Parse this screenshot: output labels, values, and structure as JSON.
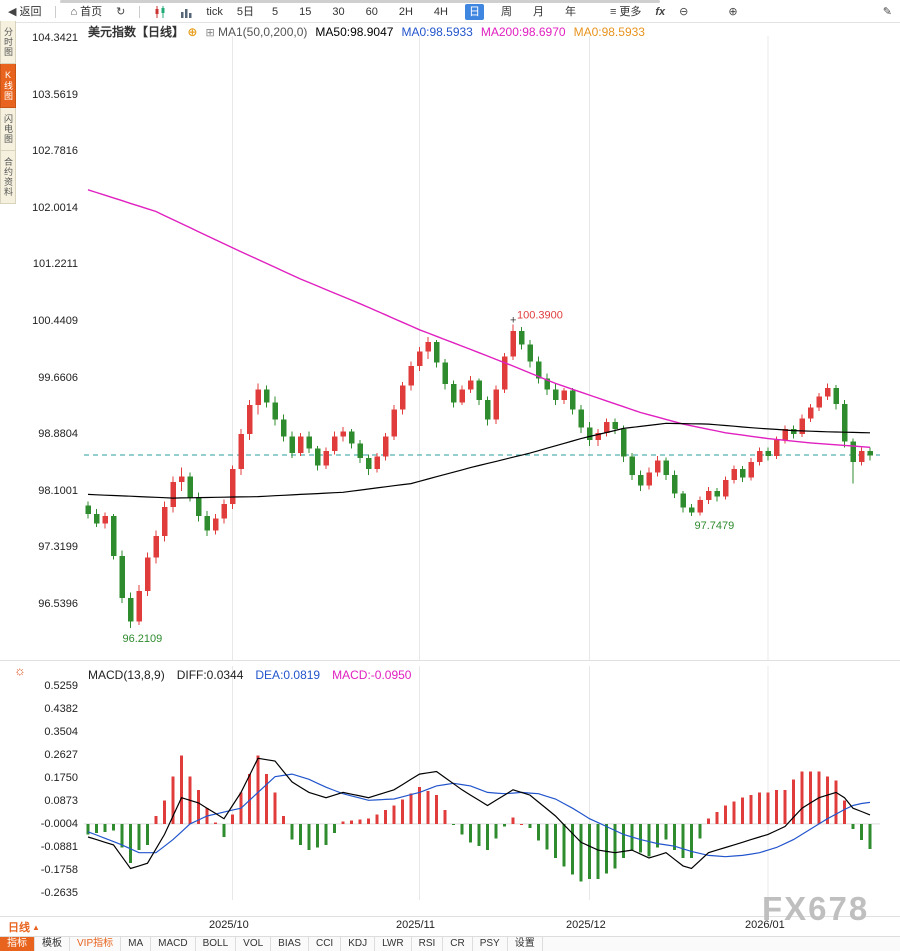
{
  "toolbar": {
    "back_label": "返回",
    "home_label": "首页",
    "tick_label": "tick",
    "five_day_label": "5日",
    "timeframes": [
      {
        "label": "5"
      },
      {
        "label": "15"
      },
      {
        "label": "30"
      },
      {
        "label": "60"
      },
      {
        "label": "2H"
      },
      {
        "label": "4H"
      },
      {
        "label": "日",
        "cls": "active"
      },
      {
        "label": "周"
      },
      {
        "label": "月"
      },
      {
        "label": "年"
      }
    ],
    "more_label": "更多",
    "fx_label": "fx"
  },
  "icons": {
    "back": "◀",
    "home": "⌂",
    "refresh": "↻",
    "menu": "≡",
    "zoom_out": "⊖",
    "zoom_in": "⊕",
    "pencil": "✎",
    "add_circle": "⊕",
    "settings_box": "⊞",
    "indicator_sun": "☼",
    "dropdown_up": "▲"
  },
  "sidebar": {
    "tabs": [
      {
        "label": "分时图"
      },
      {
        "label": "K线图",
        "cls": "active"
      },
      {
        "label": "闪电图"
      },
      {
        "label": "合约资料"
      }
    ]
  },
  "chart_header": {
    "symbol": "美元指数",
    "period": "【日线】",
    "ma_group": "MA1(50,0,200,0)",
    "ma50": "MA50:98.9047",
    "ma0_blue": "MA0:98.5933",
    "ma200": "MA200:98.6970",
    "ma0_orange": "MA0:98.5933"
  },
  "macd_header": {
    "title": "MACD(13,8,9)",
    "diff": "DIFF:0.0344",
    "dea": "DEA:0.0819",
    "macd": "MACD:-0.0950"
  },
  "price_axis": [
    "104.3421",
    "103.5619",
    "102.7816",
    "102.0014",
    "101.2211",
    "100.4409",
    "99.6606",
    "98.8804",
    "98.1001",
    "97.3199",
    "96.5396"
  ],
  "macd_axis": [
    "0.5259",
    "0.4382",
    "0.3504",
    "0.2627",
    "0.1750",
    "0.0873",
    "-0.0004",
    "-0.0881",
    "-0.1758",
    "-0.2635"
  ],
  "x_axis": [
    {
      "label": "2025/10",
      "cls": "m1"
    },
    {
      "label": "2025/11",
      "cls": "m2"
    },
    {
      "label": "2025/12",
      "cls": "m3"
    },
    {
      "label": "2026/01",
      "cls": "m4"
    }
  ],
  "bottom": {
    "period_selector": "日线",
    "tabs": [
      {
        "label": "指标",
        "cls": "active"
      },
      {
        "label": "模板"
      },
      {
        "label": "VIP指标",
        "cls": "vip"
      },
      {
        "label": "MA"
      },
      {
        "label": "MACD"
      },
      {
        "label": "BOLL"
      },
      {
        "label": "VOL"
      },
      {
        "label": "BIAS"
      },
      {
        "label": "CCI"
      },
      {
        "label": "KDJ"
      },
      {
        "label": "LWR"
      },
      {
        "label": "RSI"
      },
      {
        "label": "CR"
      },
      {
        "label": "PSY"
      },
      {
        "label": "设置"
      }
    ]
  },
  "watermark": "FX678",
  "colors": {
    "up": "#e03c3c",
    "down": "#2e8b2e",
    "ma50": "#000000",
    "ma200": "#e020c0",
    "diff_line": "#000000",
    "dea_line": "#2255cc",
    "last_close_line": "#2a9d9d",
    "grid": "#e8e8e8",
    "accent": "#e8641e",
    "timeframe_active": "#3f86e0",
    "annotation_up": "#e03c3c",
    "annotation_down": "#2e8b2e"
  },
  "chart_data": {
    "type": "candlestick",
    "symbol": "美元指数",
    "period": "日线",
    "indicator": "MACD(13,8,9)",
    "price_ticks": [
      104.3421,
      103.5619,
      102.7816,
      102.0014,
      101.2211,
      100.4409,
      99.6606,
      98.8804,
      98.1001,
      97.3199,
      96.5396
    ],
    "macd_ticks": [
      0.5259,
      0.4382,
      0.3504,
      0.2627,
      0.175,
      0.0873,
      -0.0004,
      -0.0881,
      -0.1758,
      -0.2635
    ],
    "x_tick_labels": [
      "2025/10",
      "2025/11",
      "2025/12",
      "2026/01"
    ],
    "x_tick_indices": [
      17,
      39,
      59,
      80
    ],
    "last_close": 98.5933,
    "high_annotation": {
      "index": 50,
      "value": 100.39,
      "label": "100.3900"
    },
    "low_annotation": {
      "index": 5,
      "value": 96.21,
      "label": "96.2109"
    },
    "low2_annotation": {
      "index": 71,
      "value": 97.75,
      "label": "97.7479"
    },
    "candles": [
      [
        97.9,
        97.95,
        97.72,
        97.78
      ],
      [
        97.78,
        97.85,
        97.6,
        97.65
      ],
      [
        97.65,
        97.8,
        97.58,
        97.75
      ],
      [
        97.75,
        97.78,
        97.15,
        97.2
      ],
      [
        97.2,
        97.28,
        96.55,
        96.62
      ],
      [
        96.62,
        96.7,
        96.21,
        96.3
      ],
      [
        96.3,
        96.8,
        96.25,
        96.72
      ],
      [
        96.72,
        97.25,
        96.65,
        97.18
      ],
      [
        97.18,
        97.55,
        97.1,
        97.48
      ],
      [
        97.48,
        97.95,
        97.4,
        97.88
      ],
      [
        97.88,
        98.3,
        97.8,
        98.22
      ],
      [
        98.22,
        98.42,
        98.1,
        98.3
      ],
      [
        98.3,
        98.35,
        97.95,
        98.0
      ],
      [
        98.0,
        98.08,
        97.68,
        97.75
      ],
      [
        97.75,
        97.82,
        97.48,
        97.55
      ],
      [
        97.55,
        97.78,
        97.5,
        97.72
      ],
      [
        97.72,
        97.98,
        97.65,
        97.92
      ],
      [
        97.92,
        98.45,
        97.85,
        98.4
      ],
      [
        98.4,
        98.95,
        98.32,
        98.88
      ],
      [
        98.88,
        99.35,
        98.8,
        99.28
      ],
      [
        99.28,
        99.58,
        99.15,
        99.5
      ],
      [
        99.5,
        99.55,
        99.25,
        99.32
      ],
      [
        99.32,
        99.4,
        99.0,
        99.08
      ],
      [
        99.08,
        99.15,
        98.78,
        98.85
      ],
      [
        98.85,
        98.92,
        98.55,
        98.62
      ],
      [
        98.62,
        98.9,
        98.58,
        98.85
      ],
      [
        98.85,
        98.92,
        98.62,
        98.68
      ],
      [
        98.68,
        98.72,
        98.38,
        98.45
      ],
      [
        98.45,
        98.7,
        98.4,
        98.65
      ],
      [
        98.65,
        98.92,
        98.6,
        98.85
      ],
      [
        98.85,
        98.98,
        98.78,
        98.92
      ],
      [
        98.92,
        98.95,
        98.68,
        98.75
      ],
      [
        98.75,
        98.8,
        98.48,
        98.55
      ],
      [
        98.55,
        98.6,
        98.32,
        98.4
      ],
      [
        98.4,
        98.62,
        98.35,
        98.57
      ],
      [
        98.57,
        98.9,
        98.52,
        98.85
      ],
      [
        98.85,
        99.28,
        98.8,
        99.22
      ],
      [
        99.22,
        99.6,
        99.15,
        99.55
      ],
      [
        99.55,
        99.88,
        99.48,
        99.82
      ],
      [
        99.82,
        100.08,
        99.75,
        100.02
      ],
      [
        100.02,
        100.22,
        99.92,
        100.15
      ],
      [
        100.15,
        100.18,
        99.8,
        99.87
      ],
      [
        99.87,
        99.92,
        99.5,
        99.57
      ],
      [
        99.57,
        99.62,
        99.25,
        99.32
      ],
      [
        99.32,
        99.55,
        99.28,
        99.5
      ],
      [
        99.5,
        99.68,
        99.45,
        99.62
      ],
      [
        99.62,
        99.65,
        99.28,
        99.35
      ],
      [
        99.35,
        99.4,
        99.0,
        99.08
      ],
      [
        99.08,
        99.55,
        99.02,
        99.5
      ],
      [
        99.5,
        100.0,
        99.45,
        99.95
      ],
      [
        99.95,
        100.39,
        99.9,
        100.3
      ],
      [
        100.3,
        100.36,
        100.05,
        100.12
      ],
      [
        100.12,
        100.18,
        99.8,
        99.88
      ],
      [
        99.88,
        99.95,
        99.58,
        99.65
      ],
      [
        99.65,
        99.72,
        99.42,
        99.5
      ],
      [
        99.5,
        99.58,
        99.28,
        99.35
      ],
      [
        99.35,
        99.52,
        99.3,
        99.48
      ],
      [
        99.48,
        99.52,
        99.15,
        99.22
      ],
      [
        99.22,
        99.28,
        98.9,
        98.97
      ],
      [
        98.97,
        99.05,
        98.72,
        98.8
      ],
      [
        98.8,
        98.95,
        98.72,
        98.9
      ],
      [
        98.9,
        99.1,
        98.85,
        99.05
      ],
      [
        99.05,
        99.1,
        98.88,
        98.95
      ],
      [
        98.95,
        99.0,
        98.5,
        98.57
      ],
      [
        98.57,
        98.62,
        98.25,
        98.32
      ],
      [
        98.32,
        98.38,
        98.1,
        98.17
      ],
      [
        98.17,
        98.42,
        98.12,
        98.35
      ],
      [
        98.35,
        98.58,
        98.3,
        98.52
      ],
      [
        98.52,
        98.56,
        98.25,
        98.32
      ],
      [
        98.32,
        98.38,
        98.0,
        98.06
      ],
      [
        98.06,
        98.1,
        97.8,
        97.87
      ],
      [
        97.87,
        97.92,
        97.75,
        97.8
      ],
      [
        97.8,
        98.02,
        97.76,
        97.97
      ],
      [
        97.97,
        98.15,
        97.92,
        98.1
      ],
      [
        98.1,
        98.14,
        97.95,
        98.02
      ],
      [
        98.02,
        98.3,
        97.98,
        98.25
      ],
      [
        98.25,
        98.45,
        98.2,
        98.4
      ],
      [
        98.4,
        98.44,
        98.22,
        98.28
      ],
      [
        98.28,
        98.55,
        98.24,
        98.5
      ],
      [
        98.5,
        98.7,
        98.45,
        98.65
      ],
      [
        98.65,
        98.7,
        98.52,
        98.58
      ],
      [
        98.58,
        98.85,
        98.54,
        98.8
      ],
      [
        98.8,
        99.0,
        98.75,
        98.95
      ],
      [
        98.95,
        99.0,
        98.82,
        98.88
      ],
      [
        98.88,
        99.15,
        98.84,
        99.1
      ],
      [
        99.1,
        99.3,
        99.05,
        99.25
      ],
      [
        99.25,
        99.45,
        99.2,
        99.4
      ],
      [
        99.4,
        99.58,
        99.35,
        99.52
      ],
      [
        99.52,
        99.56,
        99.22,
        99.3
      ],
      [
        99.3,
        99.35,
        98.7,
        98.78
      ],
      [
        98.78,
        98.82,
        98.2,
        98.5
      ],
      [
        98.5,
        98.7,
        98.45,
        98.65
      ],
      [
        98.65,
        98.7,
        98.52,
        98.59
      ]
    ],
    "ma50_anchors": [
      [
        0,
        98.05
      ],
      [
        10,
        98.0
      ],
      [
        20,
        98.02
      ],
      [
        30,
        98.08
      ],
      [
        38,
        98.2
      ],
      [
        45,
        98.42
      ],
      [
        52,
        98.62
      ],
      [
        58,
        98.82
      ],
      [
        63,
        98.96
      ],
      [
        68,
        99.03
      ],
      [
        73,
        99.02
      ],
      [
        78,
        98.97
      ],
      [
        83,
        98.93
      ],
      [
        88,
        98.91
      ],
      [
        92,
        98.9
      ]
    ],
    "ma200_anchors": [
      [
        0,
        102.25
      ],
      [
        8,
        101.95
      ],
      [
        17,
        101.45
      ],
      [
        25,
        101.02
      ],
      [
        32,
        100.68
      ],
      [
        39,
        100.32
      ],
      [
        45,
        100.05
      ],
      [
        50,
        99.82
      ],
      [
        55,
        99.58
      ],
      [
        60,
        99.38
      ],
      [
        65,
        99.18
      ],
      [
        70,
        99.02
      ],
      [
        75,
        98.9
      ],
      [
        80,
        98.82
      ],
      [
        85,
        98.76
      ],
      [
        92,
        98.7
      ]
    ],
    "diff_anchors": [
      [
        0,
        -0.05
      ],
      [
        3,
        -0.08
      ],
      [
        5,
        -0.17
      ],
      [
        7,
        -0.15
      ],
      [
        9,
        -0.04
      ],
      [
        11,
        0.1
      ],
      [
        13,
        0.08
      ],
      [
        16,
        0.02
      ],
      [
        18,
        0.12
      ],
      [
        20,
        0.25
      ],
      [
        22,
        0.24
      ],
      [
        24,
        0.16
      ],
      [
        26,
        0.12
      ],
      [
        28,
        0.1
      ],
      [
        30,
        0.12
      ],
      [
        33,
        0.1
      ],
      [
        36,
        0.13
      ],
      [
        39,
        0.19
      ],
      [
        41,
        0.2
      ],
      [
        44,
        0.13
      ],
      [
        47,
        0.07
      ],
      [
        50,
        0.13
      ],
      [
        52,
        0.11
      ],
      [
        55,
        0.03
      ],
      [
        58,
        -0.07
      ],
      [
        60,
        -0.1
      ],
      [
        62,
        -0.11
      ],
      [
        64,
        -0.1
      ],
      [
        66,
        -0.13
      ],
      [
        68,
        -0.11
      ],
      [
        70,
        -0.16
      ],
      [
        71,
        -0.17
      ],
      [
        73,
        -0.11
      ],
      [
        76,
        -0.08
      ],
      [
        78,
        -0.06
      ],
      [
        80,
        -0.04
      ],
      [
        82,
        -0.01
      ],
      [
        84,
        0.06
      ],
      [
        86,
        0.1
      ],
      [
        88,
        0.12
      ],
      [
        89,
        0.1
      ],
      [
        90,
        0.06
      ],
      [
        92,
        0.0344
      ]
    ],
    "dea_anchors": [
      [
        0,
        -0.03
      ],
      [
        4,
        -0.08
      ],
      [
        6,
        -0.11
      ],
      [
        8,
        -0.11
      ],
      [
        10,
        -0.06
      ],
      [
        12,
        0.0
      ],
      [
        14,
        0.03
      ],
      [
        16,
        0.045
      ],
      [
        18,
        0.06
      ],
      [
        20,
        0.12
      ],
      [
        22,
        0.18
      ],
      [
        24,
        0.19
      ],
      [
        26,
        0.17
      ],
      [
        28,
        0.14
      ],
      [
        30,
        0.115
      ],
      [
        33,
        0.09
      ],
      [
        36,
        0.095
      ],
      [
        39,
        0.12
      ],
      [
        41,
        0.145
      ],
      [
        43,
        0.155
      ],
      [
        45,
        0.145
      ],
      [
        47,
        0.12
      ],
      [
        49,
        0.115
      ],
      [
        51,
        0.12
      ],
      [
        53,
        0.115
      ],
      [
        55,
        0.095
      ],
      [
        57,
        0.06
      ],
      [
        59,
        0.02
      ],
      [
        61,
        -0.01
      ],
      [
        63,
        -0.04
      ],
      [
        65,
        -0.06
      ],
      [
        67,
        -0.075
      ],
      [
        69,
        -0.085
      ],
      [
        71,
        -0.105
      ],
      [
        73,
        -0.12
      ],
      [
        75,
        -0.125
      ],
      [
        77,
        -0.12
      ],
      [
        79,
        -0.11
      ],
      [
        81,
        -0.09
      ],
      [
        83,
        -0.06
      ],
      [
        85,
        -0.02
      ],
      [
        87,
        0.02
      ],
      [
        89,
        0.055
      ],
      [
        90,
        0.07
      ],
      [
        91,
        0.078
      ],
      [
        92,
        0.0819
      ]
    ],
    "macd_formula": "hist = 2 * (DIFF - DEA)"
  }
}
